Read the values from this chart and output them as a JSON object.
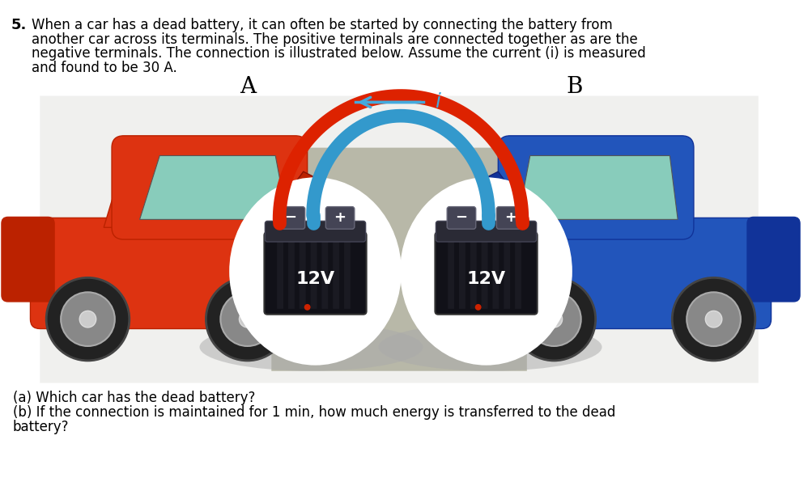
{
  "question_number": "5.",
  "question_text_line1": "When a car has a dead battery, it can often be started by connecting the battery from",
  "question_text_line2": "another car across its terminals. The positive terminals are connected together as are the",
  "question_text_line3": "negative terminals. The connection is illustrated below. Assume the current (i) is measured",
  "question_text_line4": "and found to be 30 A.",
  "label_A": "A",
  "label_B": "B",
  "battery_voltage": "12V",
  "part_a": "(a) Which car has the dead battery?",
  "part_b_line1": "(b) If the connection is maintained for 1 min, how much energy is transferred to the dead",
  "part_b_line2": "battery?",
  "bg_color": "#ffffff",
  "text_color": "#000000",
  "red_car_body": "#dd3311",
  "red_car_dark": "#bb2200",
  "red_car_light": "#ff6644",
  "blue_car_body": "#2255bb",
  "blue_car_dark": "#113399",
  "blue_car_light": "#4488dd",
  "windshield_color": "#88ccbb",
  "wheel_color": "#333333",
  "hubcap_color": "#999999",
  "cable_red": "#dd2200",
  "cable_blue": "#3399cc",
  "arrow_blue": "#44aadd",
  "battery_body": "#1a1a1a",
  "battery_top": "#2a2a2a",
  "battery_terminal": "#555555",
  "white": "#ffffff",
  "ground_color": "#999999",
  "oval_white": "#ffffff",
  "label_i_color": "#44aadd",
  "scene_bg": "#ddddcc"
}
